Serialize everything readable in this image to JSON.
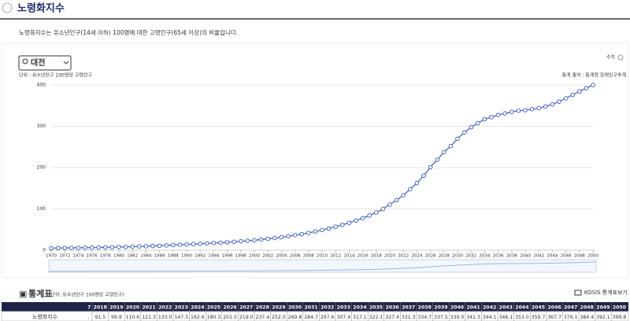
{
  "header": {
    "title": "노령화지수",
    "description": "노령화지수는 유소년인구(14세 이하) 100명에 대한 고령인구(65세 이상)의 비율입니다."
  },
  "controls": {
    "region": "대전",
    "toggle": "수치",
    "kosis_button": "KOSIS 통계표보기"
  },
  "chart_data": {
    "type": "line",
    "unit": "단위 : 유소년인구 100명당 고령인구",
    "source": "통계 출처 : 통계청 장래인구추계",
    "x": [
      1970,
      1971,
      1972,
      1973,
      1974,
      1975,
      1976,
      1977,
      1978,
      1979,
      1980,
      1981,
      1982,
      1983,
      1984,
      1985,
      1986,
      1987,
      1988,
      1989,
      1990,
      1991,
      1992,
      1993,
      1994,
      1995,
      1996,
      1997,
      1998,
      1999,
      2000,
      2001,
      2002,
      2003,
      2004,
      2005,
      2006,
      2007,
      2008,
      2009,
      2010,
      2011,
      2012,
      2013,
      2014,
      2015,
      2016,
      2017,
      2018,
      2019,
      2020,
      2021,
      2022,
      2023,
      2024,
      2025,
      2026,
      2027,
      2028,
      2029,
      2030,
      2031,
      2032,
      2033,
      2034,
      2035,
      2036,
      2037,
      2038,
      2039,
      2040,
      2041,
      2042,
      2043,
      2044,
      2045,
      2046,
      2047,
      2048,
      2049,
      2050
    ],
    "series": [
      {
        "name": "노령화지수",
        "color": "#4a68c0",
        "values": [
          5.0,
          5.2,
          5.4,
          5.6,
          5.8,
          6.0,
          6.3,
          6.6,
          6.9,
          7.2,
          7.6,
          8.0,
          8.5,
          9.0,
          9.6,
          10.2,
          10.9,
          11.6,
          12.4,
          13.2,
          14.0,
          14.8,
          15.6,
          16.4,
          17.3,
          18.2,
          19.2,
          20.3,
          21.5,
          22.8,
          24.2,
          25.8,
          27.5,
          29.4,
          31.5,
          33.8,
          36.3,
          39.0,
          42.0,
          45.3,
          48.8,
          52.6,
          56.8,
          61.4,
          66.4,
          71.8,
          77.6,
          84.1,
          91.5,
          99.8,
          110.6,
          121.3,
          133.0,
          147.5,
          162.6,
          180.3,
          201.0,
          219.0,
          237.4,
          252.0,
          269.8,
          284.7,
          297.6,
          307.4,
          317.1,
          322.1,
          327.4,
          331.3,
          334.7,
          337.5,
          339.0,
          341.3,
          344.1,
          348.1,
          353.0,
          359.7,
          367.7,
          376.1,
          384.4,
          392.1,
          399.8
        ]
      }
    ],
    "xlim": [
      1970,
      2050
    ],
    "xticks": [
      1970,
      1972,
      1974,
      1976,
      1978,
      1980,
      1982,
      1984,
      1986,
      1988,
      1990,
      1992,
      1994,
      1996,
      1998,
      2000,
      2002,
      2004,
      2006,
      2008,
      2010,
      2012,
      2014,
      2016,
      2018,
      2020,
      2022,
      2024,
      2026,
      2028,
      2030,
      2032,
      2034,
      2036,
      2038,
      2040,
      2042,
      2044,
      2046,
      2048,
      2050
    ],
    "ylim": [
      0,
      400
    ],
    "yticks": [
      0,
      100,
      200,
      300,
      400
    ],
    "grid": true
  },
  "table": {
    "title": "통계표",
    "unit": "(단위: 유소년인구 100명당 고령인구)",
    "row_label": "노령화지수",
    "columns": [
      "2017",
      "2018",
      "2019",
      "2020",
      "2021",
      "2022",
      "2023",
      "2024",
      "2025",
      "2026",
      "2027",
      "2028",
      "2029",
      "2030",
      "2031",
      "2032",
      "2033",
      "2034",
      "2035",
      "2036",
      "2037",
      "2038",
      "2039",
      "2040",
      "2041",
      "2042",
      "2043",
      "2044",
      "2045",
      "2046",
      "2047",
      "2048",
      "2049",
      "2050"
    ],
    "values": [
      "84.1",
      "91.5",
      "99.8",
      "110.6",
      "121.3",
      "133.0",
      "147.5",
      "162.6",
      "180.3",
      "201.0",
      "219.0",
      "237.4",
      "252.0",
      "269.8",
      "284.7",
      "297.6",
      "307.4",
      "317.1",
      "322.1",
      "327.4",
      "331.3",
      "334.7",
      "337.5",
      "339.0",
      "341.3",
      "344.1",
      "348.1",
      "353.0",
      "359.7",
      "367.7",
      "376.1",
      "384.4",
      "392.1",
      "399.8"
    ]
  }
}
